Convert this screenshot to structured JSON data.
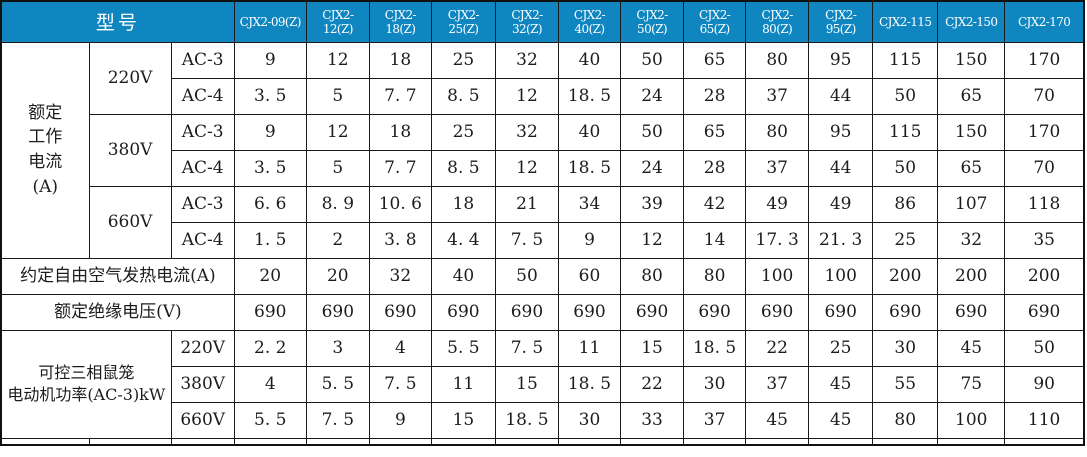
{
  "table": {
    "model_label": "型号",
    "models": [
      "CJX2-09(Z)",
      "CJX2-12(Z)",
      "CJX2-18(Z)",
      "CJX2-25(Z)",
      "CJX2-32(Z)",
      "CJX2-40(Z)",
      "CJX2-50(Z)",
      "CJX2-65(Z)",
      "CJX2-80(Z)",
      "CJX2-95(Z)",
      "CJX2-115",
      "CJX2-150",
      "CJX2-170"
    ],
    "colors": {
      "header_bg": "#1086c1",
      "header_text": "#ffffff",
      "border": "#1a1a1a",
      "body_text": "#1c1c1c"
    },
    "rows": [
      {
        "label_cells": [
          {
            "text": "额定\n工作\n电流\n(A)",
            "rowspan": 6,
            "name": "row-group-label-rated-working-current"
          },
          {
            "text": "220V",
            "rowspan": 2,
            "name": "row-label-voltage-220v"
          },
          {
            "text": "AC-3",
            "name": "row-label-ac3"
          }
        ],
        "values": [
          "9",
          "12",
          "18",
          "25",
          "32",
          "40",
          "50",
          "65",
          "80",
          "95",
          "115",
          "150",
          "170"
        ]
      },
      {
        "label_cells": [
          {
            "text": "AC-4",
            "name": "row-label-ac4"
          }
        ],
        "values": [
          "3. 5",
          "5",
          "7. 7",
          "8. 5",
          "12",
          "18. 5",
          "24",
          "28",
          "37",
          "44",
          "50",
          "65",
          "70"
        ]
      },
      {
        "label_cells": [
          {
            "text": "380V",
            "rowspan": 2,
            "name": "row-label-voltage-380v"
          },
          {
            "text": "AC-3",
            "name": "row-label-ac3"
          }
        ],
        "values": [
          "9",
          "12",
          "18",
          "25",
          "32",
          "40",
          "50",
          "65",
          "80",
          "95",
          "115",
          "150",
          "170"
        ]
      },
      {
        "label_cells": [
          {
            "text": "AC-4",
            "name": "row-label-ac4"
          }
        ],
        "values": [
          "3. 5",
          "5",
          "7. 7",
          "8. 5",
          "12",
          "18. 5",
          "24",
          "28",
          "37",
          "44",
          "50",
          "65",
          "70"
        ]
      },
      {
        "label_cells": [
          {
            "text": "660V",
            "rowspan": 2,
            "name": "row-label-voltage-660v"
          },
          {
            "text": "AC-3",
            "name": "row-label-ac3"
          }
        ],
        "values": [
          "6. 6",
          "8. 9",
          "10. 6",
          "18",
          "21",
          "34",
          "39",
          "42",
          "49",
          "49",
          "86",
          "107",
          "118"
        ]
      },
      {
        "label_cells": [
          {
            "text": "AC-4",
            "name": "row-label-ac4"
          }
        ],
        "values": [
          "1. 5",
          "2",
          "3. 8",
          "4. 4",
          "7. 5",
          "9",
          "12",
          "14",
          "17. 3",
          "21. 3",
          "25",
          "32",
          "35"
        ]
      },
      {
        "label_cells": [
          {
            "text": "约定自由空气发热电流(A)",
            "colspan": 3,
            "name": "row-label-conventional-free-air-thermal-current"
          }
        ],
        "values": [
          "20",
          "20",
          "32",
          "40",
          "50",
          "60",
          "80",
          "80",
          "100",
          "100",
          "200",
          "200",
          "200"
        ]
      },
      {
        "label_cells": [
          {
            "text": "额定绝缘电压(V)",
            "colspan": 3,
            "name": "row-label-rated-insulation-voltage"
          }
        ],
        "values": [
          "690",
          "690",
          "690",
          "690",
          "690",
          "690",
          "690",
          "690",
          "690",
          "690",
          "690",
          "690",
          "690"
        ]
      },
      {
        "label_cells": [
          {
            "text": "可控三相鼠笼\n电动机功率(AC-3)kW",
            "colspan": 2,
            "rowspan": 3,
            "cls": "small",
            "name": "row-group-label-controllable-motor-power"
          },
          {
            "text": "220V",
            "name": "row-label-voltage-220v"
          }
        ],
        "values": [
          "2. 2",
          "3",
          "4",
          "5. 5",
          "7. 5",
          "11",
          "15",
          "18. 5",
          "22",
          "25",
          "30",
          "45",
          "50"
        ]
      },
      {
        "label_cells": [
          {
            "text": "380V",
            "name": "row-label-voltage-380v"
          }
        ],
        "values": [
          "4",
          "5. 5",
          "7. 5",
          "11",
          "15",
          "18. 5",
          "22",
          "30",
          "37",
          "45",
          "55",
          "75",
          "90"
        ]
      },
      {
        "label_cells": [
          {
            "text": "660V",
            "name": "row-label-voltage-660v"
          }
        ],
        "values": [
          "5. 5",
          "7. 5",
          "9",
          "15",
          "18. 5",
          "30",
          "33",
          "37",
          "45",
          "45",
          "80",
          "100",
          "110"
        ]
      }
    ]
  }
}
